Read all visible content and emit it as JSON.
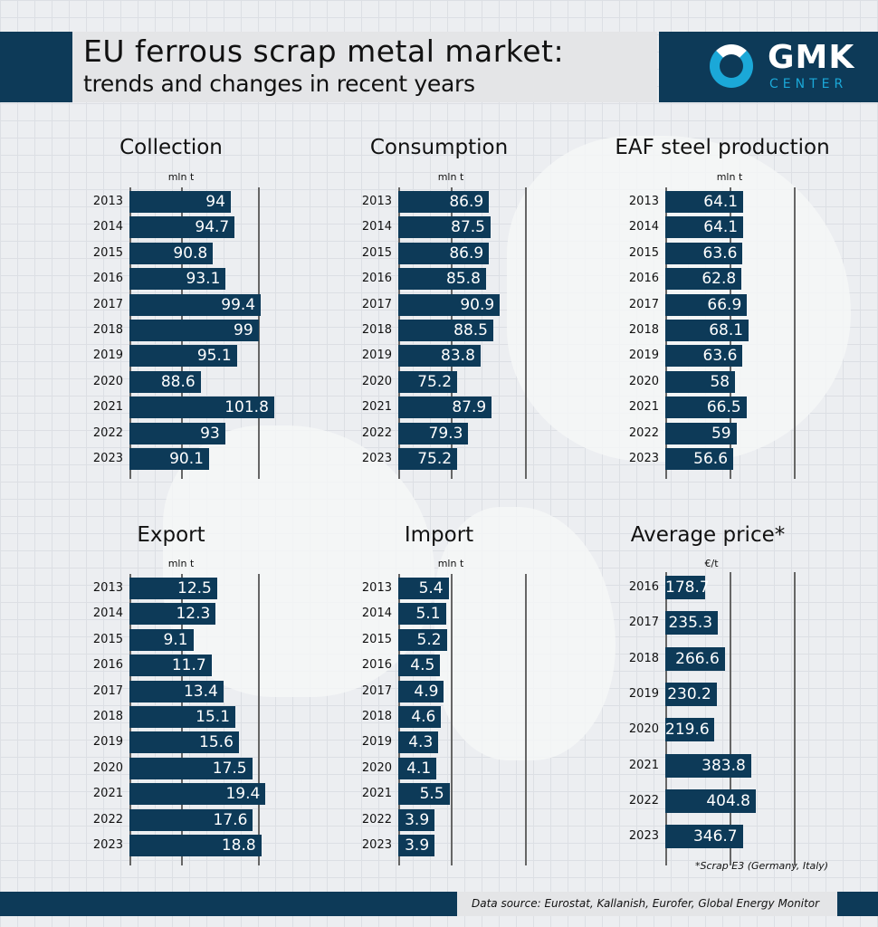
{
  "header": {
    "title": "EU ferrous scrap metal market:",
    "subtitle": "trends and changes in recent years"
  },
  "logo": {
    "name": "GMK",
    "sub": "CENTER"
  },
  "colors": {
    "bar": "#0d3a58",
    "navy": "#0d3a58",
    "logo_accent": "#1ba8d8"
  },
  "chart_data": [
    {
      "type": "bar",
      "orientation": "horizontal",
      "title": "Collection",
      "unit": "mln t",
      "categories": [
        "2013",
        "2014",
        "2015",
        "2016",
        "2017",
        "2018",
        "2019",
        "2020",
        "2021",
        "2022",
        "2023"
      ],
      "values": [
        94,
        94.7,
        90.8,
        93.1,
        99.4,
        99,
        95.1,
        88.6,
        101.8,
        93,
        90.1
      ]
    },
    {
      "type": "bar",
      "orientation": "horizontal",
      "title": "Consumption",
      "unit": "mln t",
      "categories": [
        "2013",
        "2014",
        "2015",
        "2016",
        "2017",
        "2018",
        "2019",
        "2020",
        "2021",
        "2022",
        "2023"
      ],
      "values": [
        86.9,
        87.5,
        86.9,
        85.8,
        90.9,
        88.5,
        83.8,
        75.2,
        87.9,
        79.3,
        75.2
      ]
    },
    {
      "type": "bar",
      "orientation": "horizontal",
      "title": "EAF steel production",
      "unit": "mln t",
      "categories": [
        "2013",
        "2014",
        "2015",
        "2016",
        "2017",
        "2018",
        "2019",
        "2020",
        "2021",
        "2022",
        "2023"
      ],
      "values": [
        64.1,
        64.1,
        63.6,
        62.8,
        66.9,
        68.1,
        63.6,
        58,
        66.5,
        59,
        56.6
      ]
    },
    {
      "type": "bar",
      "orientation": "horizontal",
      "title": "Export",
      "unit": "mln t",
      "categories": [
        "2013",
        "2014",
        "2015",
        "2016",
        "2017",
        "2018",
        "2019",
        "2020",
        "2021",
        "2022",
        "2023"
      ],
      "values": [
        12.5,
        12.3,
        9.1,
        11.7,
        13.4,
        15.1,
        15.6,
        17.5,
        19.4,
        17.6,
        18.8
      ]
    },
    {
      "type": "bar",
      "orientation": "horizontal",
      "title": "Import",
      "unit": "mln t",
      "categories": [
        "2013",
        "2014",
        "2015",
        "2016",
        "2017",
        "2018",
        "2019",
        "2020",
        "2021",
        "2022",
        "2023"
      ],
      "values": [
        5.4,
        5.1,
        5.2,
        4.5,
        4.9,
        4.6,
        4.3,
        4.1,
        5.5,
        3.9,
        3.9
      ]
    },
    {
      "type": "bar",
      "orientation": "horizontal",
      "title": "Average price*",
      "unit": "€/t",
      "categories": [
        "2016",
        "2017",
        "2018",
        "2019",
        "2020",
        "2021",
        "2022",
        "2023"
      ],
      "values": [
        178.7,
        235.3,
        266.6,
        230.2,
        219.6,
        383.8,
        404.8,
        346.7
      ]
    }
  ],
  "note": "*Scrap E3 (Germany, Italy)",
  "footer": {
    "source": "Data source: Eurostat, Kallanish, Eurofer, Global Energy Monitor"
  }
}
